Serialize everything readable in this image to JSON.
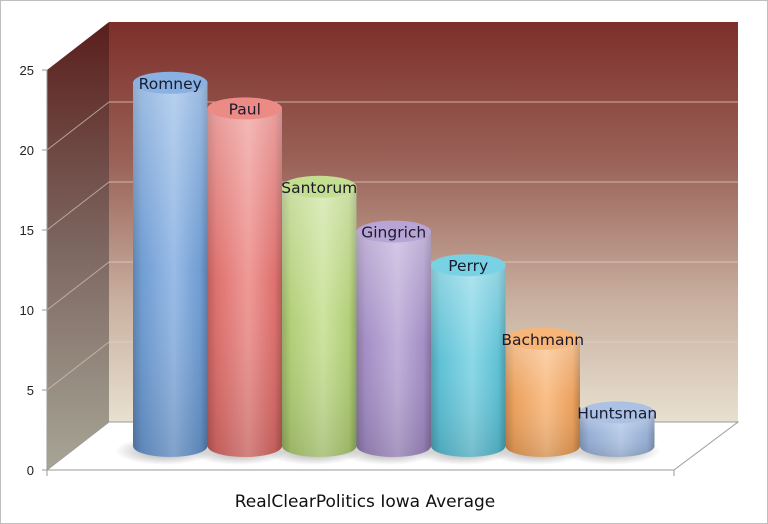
{
  "chart_data": {
    "type": "bar",
    "style": "3d-cylinder",
    "title": "",
    "xlabel": "RealClearPolitics Iowa Average",
    "ylabel": "",
    "ylim": [
      0,
      25
    ],
    "yticks": [
      0,
      5,
      10,
      15,
      20,
      25
    ],
    "grid": true,
    "legend": null,
    "categories": [
      "Romney",
      "Paul",
      "Santorum",
      "Gingrich",
      "Perry",
      "Bachmann",
      "Huntsman"
    ],
    "values": [
      22.7,
      21.1,
      16.2,
      13.4,
      11.3,
      6.7,
      2.1
    ],
    "colors": [
      "#6fa0dc",
      "#e8706c",
      "#b8d878",
      "#a890cc",
      "#5cc8de",
      "#f7a55a",
      "#9ab4de"
    ],
    "data_labels": [
      "Romney",
      "Paul",
      "Santorum",
      "Gingrich",
      "Perry",
      "Bachmann",
      "Huntsman"
    ]
  },
  "axis": {
    "ticks": [
      "0",
      "5",
      "10",
      "15",
      "20",
      "25"
    ]
  }
}
